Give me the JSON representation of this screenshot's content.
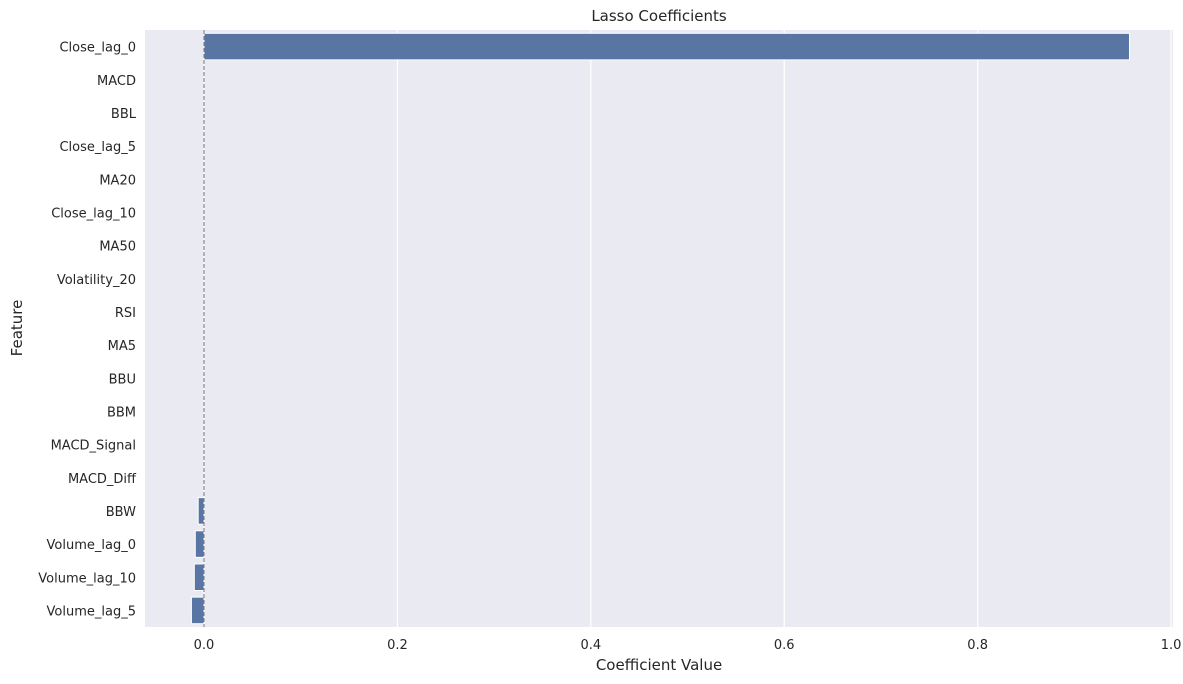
{
  "chart_data": {
    "type": "bar",
    "orientation": "horizontal",
    "title": "Lasso Coefficients",
    "xlabel": "Coefficient Value",
    "ylabel": "Feature",
    "categories": [
      "Close_lag_0",
      "MACD",
      "BBL",
      "Close_lag_5",
      "MA20",
      "Close_lag_10",
      "MA50",
      "Volatility_20",
      "RSI",
      "MA5",
      "BBU",
      "BBM",
      "MACD_Signal",
      "MACD_Diff",
      "BBW",
      "Volume_lag_0",
      "Volume_lag_10",
      "Volume_lag_5"
    ],
    "values": [
      0.957,
      0,
      0,
      0,
      0,
      0,
      0,
      0,
      0,
      0,
      0,
      0,
      0,
      0,
      -0.006,
      -0.009,
      -0.01,
      -0.013
    ],
    "xlim": [
      -0.061,
      1.002
    ],
    "xticks": [
      0.0,
      0.2,
      0.4,
      0.6,
      0.8,
      1.0
    ],
    "xtick_labels": [
      "0.0",
      "0.2",
      "0.4",
      "0.6",
      "0.8",
      "1.0"
    ],
    "reference_line": {
      "x": 0,
      "style": "dashed"
    },
    "grid": true,
    "background_color": "#eaeaf2",
    "bar_color": "#5875a4"
  }
}
